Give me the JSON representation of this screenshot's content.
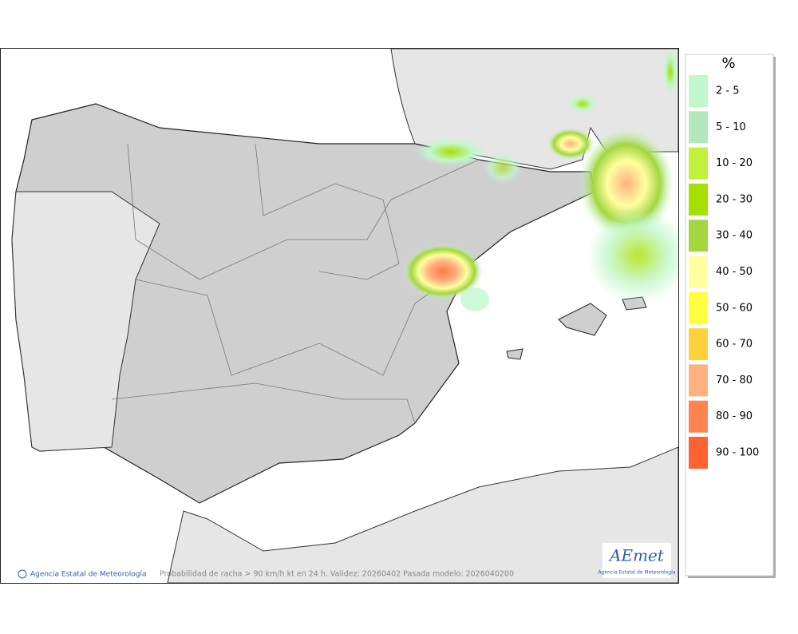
{
  "legend": {
    "title": "%",
    "items": [
      {
        "label": "2 - 5",
        "color": "#c2f7cc"
      },
      {
        "label": "5 - 10",
        "color": "#b3e8bb"
      },
      {
        "label": "10 - 20",
        "color": "#c2f03c"
      },
      {
        "label": "20 - 30",
        "color": "#a6e000"
      },
      {
        "label": "30 - 40",
        "color": "#a3d63f"
      },
      {
        "label": "40 - 50",
        "color": "#ffffa0"
      },
      {
        "label": "50 - 60",
        "color": "#ffff40"
      },
      {
        "label": "60 - 70",
        "color": "#ffd23c"
      },
      {
        "label": "70 - 80",
        "color": "#ffb080"
      },
      {
        "label": "80 - 90",
        "color": "#ff8450"
      },
      {
        "label": "90 - 100",
        "color": "#ff6232"
      }
    ]
  },
  "footer": {
    "agency": "Agencia Estatal de Meteorología",
    "caption": "Probabilidad de racha > 90 km/h kt en 24 h. Validez: 20260402 Pasada modelo: 2026040200"
  },
  "logo": {
    "brand": "AEmet",
    "subtitle": "Agencia Estatal de Meteorología"
  }
}
